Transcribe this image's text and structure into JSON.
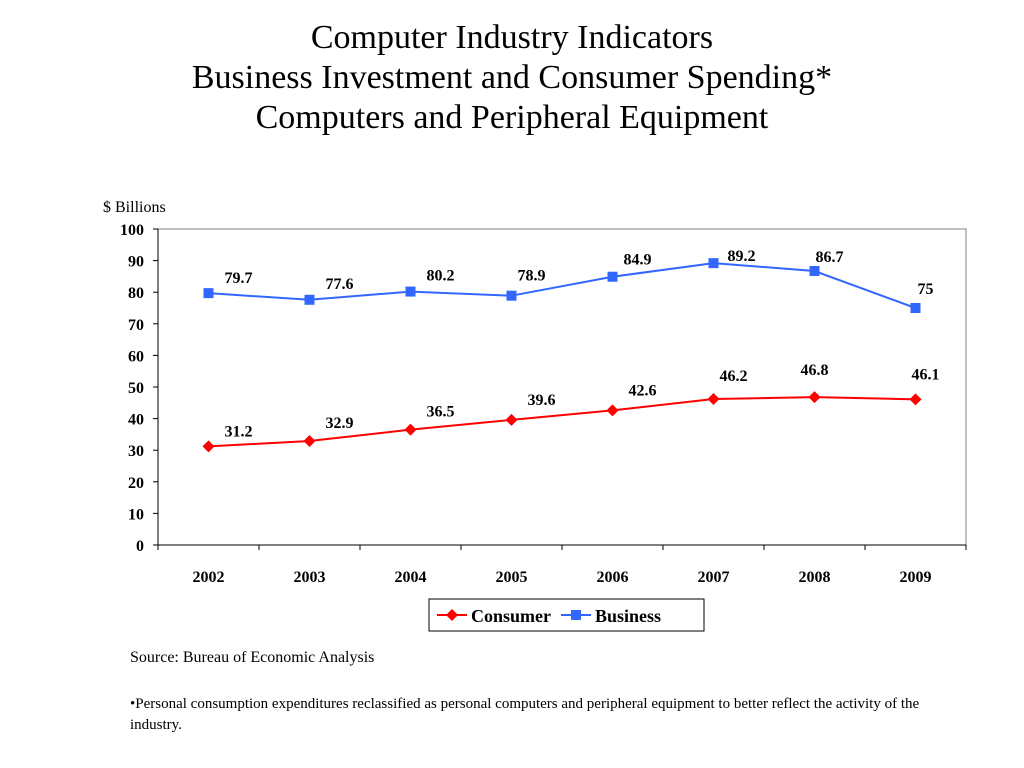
{
  "title_lines": [
    "Computer Industry Indicators",
    "Business Investment and Consumer Spending*",
    "Computers and Peripheral Equipment"
  ],
  "source": "Source:  Bureau of Economic Analysis",
  "footnote": "•Personal consumption expenditures reclassified as personal computers and peripheral equipment to better reflect the activity of the industry.",
  "colors": {
    "consumer": "#ff0000",
    "business": "#3366ff"
  },
  "chart_data": {
    "type": "line",
    "ylabel": "$ Billions",
    "xlabel": "",
    "categories": [
      "2002",
      "2003",
      "2004",
      "2005",
      "2006",
      "2007",
      "2008",
      "2009"
    ],
    "ylim": [
      0,
      100
    ],
    "yticks": [
      0,
      10,
      20,
      30,
      40,
      50,
      60,
      70,
      80,
      90,
      100
    ],
    "grid": false,
    "legend_position": "bottom",
    "series": [
      {
        "name": "Consumer",
        "marker": "diamond",
        "color": "#ff0000",
        "values": [
          31.2,
          32.9,
          36.5,
          39.6,
          42.6,
          46.2,
          46.8,
          46.1
        ],
        "labels": [
          "31.2",
          "32.9",
          "36.5",
          "39.6",
          "42.6",
          "46.2",
          "46.8",
          "46.1"
        ]
      },
      {
        "name": "Business",
        "marker": "square",
        "color": "#3366ff",
        "values": [
          79.7,
          77.6,
          80.2,
          78.9,
          84.9,
          89.2,
          86.7,
          75
        ],
        "labels": [
          "79.7",
          "77.6",
          "80.2",
          "78.9",
          "84.9",
          "89.2",
          "86.7",
          "75"
        ]
      }
    ]
  }
}
